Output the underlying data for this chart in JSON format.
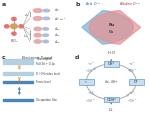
{
  "panel_labels": [
    "a",
    "b",
    "c",
    "d"
  ],
  "panel_label_color": "#333333",
  "bg_color": "#ffffff",
  "panel_a": {
    "eg_labels": [
      "d_{z^2}",
      "d_{x^2-y^2}"
    ],
    "t2g_labels": [
      "d_{xy}",
      "d_{xz}",
      "d_{yz}"
    ],
    "eg_color": "#e8b4b8",
    "t2g_color": "#b4c8e8",
    "line_color": "#555555",
    "struct_color": "#d4a060"
  },
  "panel_b": {
    "left_color": "#7ab0d4",
    "right_color": "#e89090",
    "label_acid": "Acid O^2-",
    "label_alk": "Alkaline O^2-",
    "overlap_color": "#c0a0c0"
  },
  "panel_c": {
    "title": "Electronic Tunnel",
    "band1_color": "#b0cce0",
    "band2_color": "#b0cce0",
    "band3_color": "#4080b0",
    "band4_color": "#4080b0",
    "arrow1_color": "#e8a030",
    "arrow2_color": "#e8a030",
    "arrow3_color": "#4080b0",
    "label1": "Electron Transfer",
    "label2": "Hybridization effects",
    "label3": "Charge-transfer energy"
  },
  "panel_d": {
    "circle_color": "#aaaaaa",
    "box_color": "#c8dff0",
    "box_edge": "#6699cc",
    "arrow_color": "#88aacc",
    "top_label": "H2O",
    "bottom_label": "O2",
    "boxes": [
      "OH*",
      "O*",
      "OOH*",
      "*"
    ],
    "step_text": [
      "+ e- + H+",
      "+ e- + H+",
      "+ e- + H+",
      "+ e- + H+"
    ],
    "center_text": "4e- 4H+"
  }
}
